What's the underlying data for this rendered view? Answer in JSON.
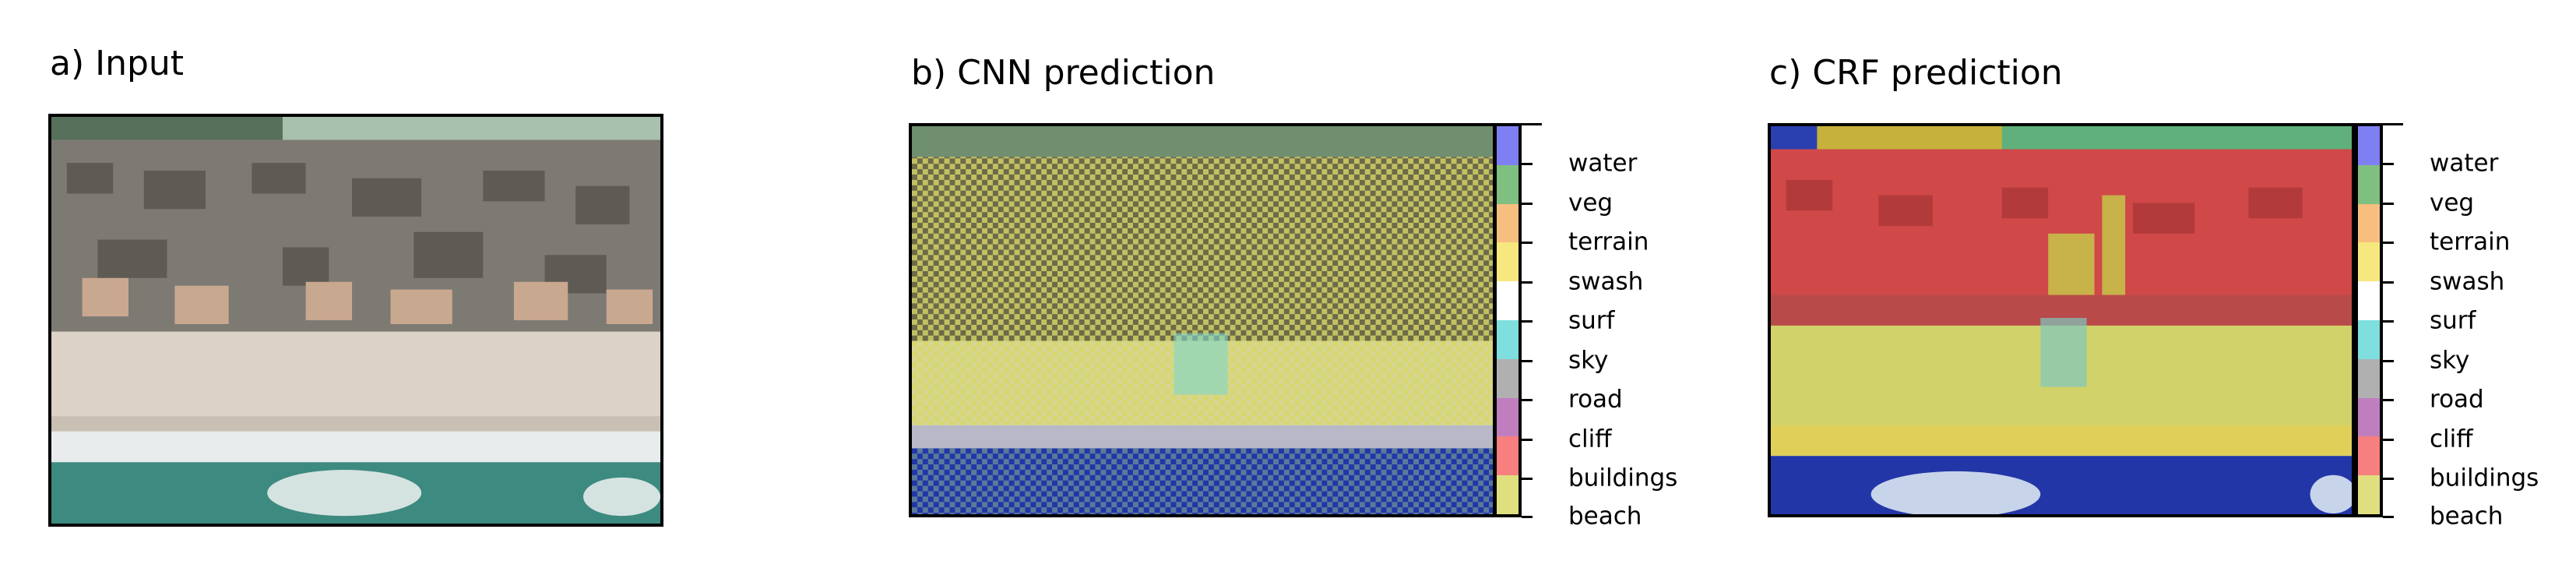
{
  "panels": {
    "input": {
      "title": "a) Input"
    },
    "cnn": {
      "title": "b) CNN prediction"
    },
    "crf": {
      "title": "c) CRF prediction"
    }
  },
  "legend": {
    "classes": [
      {
        "label": "water",
        "color": "#7f7ff4"
      },
      {
        "label": "veg",
        "color": "#7fbf7f"
      },
      {
        "label": "terrain",
        "color": "#f7bf7f"
      },
      {
        "label": "swash",
        "color": "#f7e77f"
      },
      {
        "label": "surf",
        "color": "#ffffff"
      },
      {
        "label": "sky",
        "color": "#7fdfdf"
      },
      {
        "label": "road",
        "color": "#b0b0b0"
      },
      {
        "label": "cliff",
        "color": "#bf7fbf"
      },
      {
        "label": "buildings",
        "color": "#f77f7f"
      },
      {
        "label": "beach",
        "color": "#dfdf7f"
      }
    ]
  }
}
